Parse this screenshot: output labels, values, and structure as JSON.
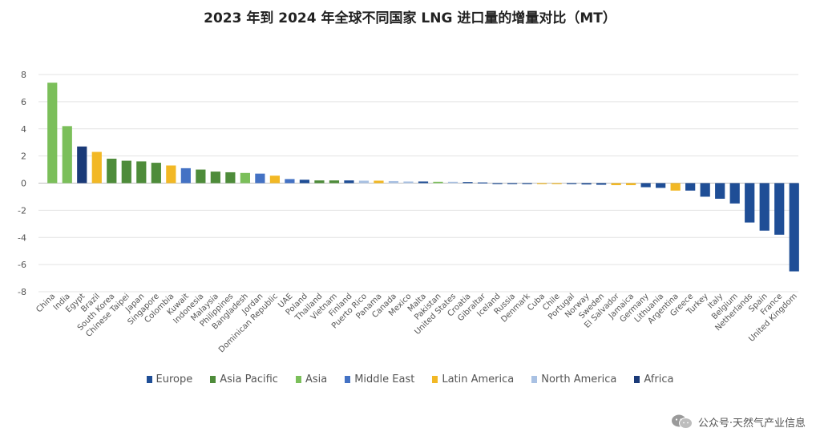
{
  "chart_data": {
    "type": "bar",
    "title": "2023 年到 2024 年全球不同国家 LNG 进口量的增量对比（MT）",
    "xlabel": "",
    "ylabel": "",
    "ylim": [
      -8,
      8
    ],
    "yticks": [
      8,
      6,
      4,
      2,
      0,
      -2,
      -4,
      -6,
      -8
    ],
    "grid": true,
    "legend_position": "bottom",
    "regions": [
      {
        "name": "Europe",
        "color": "#1f4e96"
      },
      {
        "name": "Asia Pacific",
        "color": "#4e8c3a"
      },
      {
        "name": "Asia",
        "color": "#7bbf5a"
      },
      {
        "name": "Middle East",
        "color": "#4472c4"
      },
      {
        "name": "Latin America",
        "color": "#f2b825"
      },
      {
        "name": "North America",
        "color": "#a9c1e3"
      },
      {
        "name": "Africa",
        "color": "#1a3a78"
      }
    ],
    "categories": [
      "China",
      "India",
      "Egypt",
      "Brazil",
      "South Korea",
      "Chinese Taipei",
      "Japan",
      "Singapore",
      "Colombia",
      "Kuwait",
      "Indonesia",
      "Malaysia",
      "Philippines",
      "Bangladesh",
      "Jordan",
      "Dominican Republic",
      "UAE",
      "Poland",
      "Thailand",
      "Vietnam",
      "Finland",
      "Puerto Rico",
      "Panama",
      "Canada",
      "Mexico",
      "Malta",
      "Pakistan",
      "United States",
      "Croatia",
      "Gibraltar",
      "Iceland",
      "Russia",
      "Denmark",
      "Cuba",
      "Chile",
      "Portugal",
      "Norway",
      "Sweden",
      "El Salvador",
      "Jamaica",
      "Germany",
      "Lithuania",
      "Argentina",
      "Greece",
      "Turkey",
      "Italy",
      "Belgium",
      "Netherlands",
      "Spain",
      "France",
      "United Kingdom"
    ],
    "values": [
      7.4,
      4.2,
      2.7,
      2.3,
      1.8,
      1.65,
      1.6,
      1.5,
      1.3,
      1.1,
      1.0,
      0.85,
      0.8,
      0.75,
      0.7,
      0.55,
      0.3,
      0.25,
      0.2,
      0.2,
      0.2,
      0.18,
      0.18,
      0.15,
      0.12,
      0.12,
      0.1,
      0.1,
      0.08,
      0.05,
      -0.05,
      -0.05,
      -0.05,
      -0.05,
      -0.05,
      -0.05,
      -0.1,
      -0.12,
      -0.15,
      -0.15,
      -0.3,
      -0.35,
      -0.55,
      -0.55,
      -1.0,
      -1.15,
      -1.5,
      -2.9,
      -3.5,
      -3.8,
      -6.5
    ],
    "bar_regions": [
      "Asia",
      "Asia",
      "Africa",
      "Latin America",
      "Asia Pacific",
      "Asia Pacific",
      "Asia Pacific",
      "Asia Pacific",
      "Latin America",
      "Middle East",
      "Asia Pacific",
      "Asia Pacific",
      "Asia Pacific",
      "Asia",
      "Middle East",
      "Latin America",
      "Middle East",
      "Europe",
      "Asia Pacific",
      "Asia Pacific",
      "Europe",
      "North America",
      "Latin America",
      "North America",
      "North America",
      "Europe",
      "Asia",
      "North America",
      "Europe",
      "Europe",
      "Europe",
      "Europe",
      "Europe",
      "Latin America",
      "Latin America",
      "Europe",
      "Europe",
      "Europe",
      "Latin America",
      "Latin America",
      "Europe",
      "Europe",
      "Latin America",
      "Europe",
      "Europe",
      "Europe",
      "Europe",
      "Europe",
      "Europe",
      "Europe",
      "Europe"
    ]
  },
  "watermark": {
    "text": "公众号·天然气产业信息",
    "icon": "wechat-icon"
  }
}
